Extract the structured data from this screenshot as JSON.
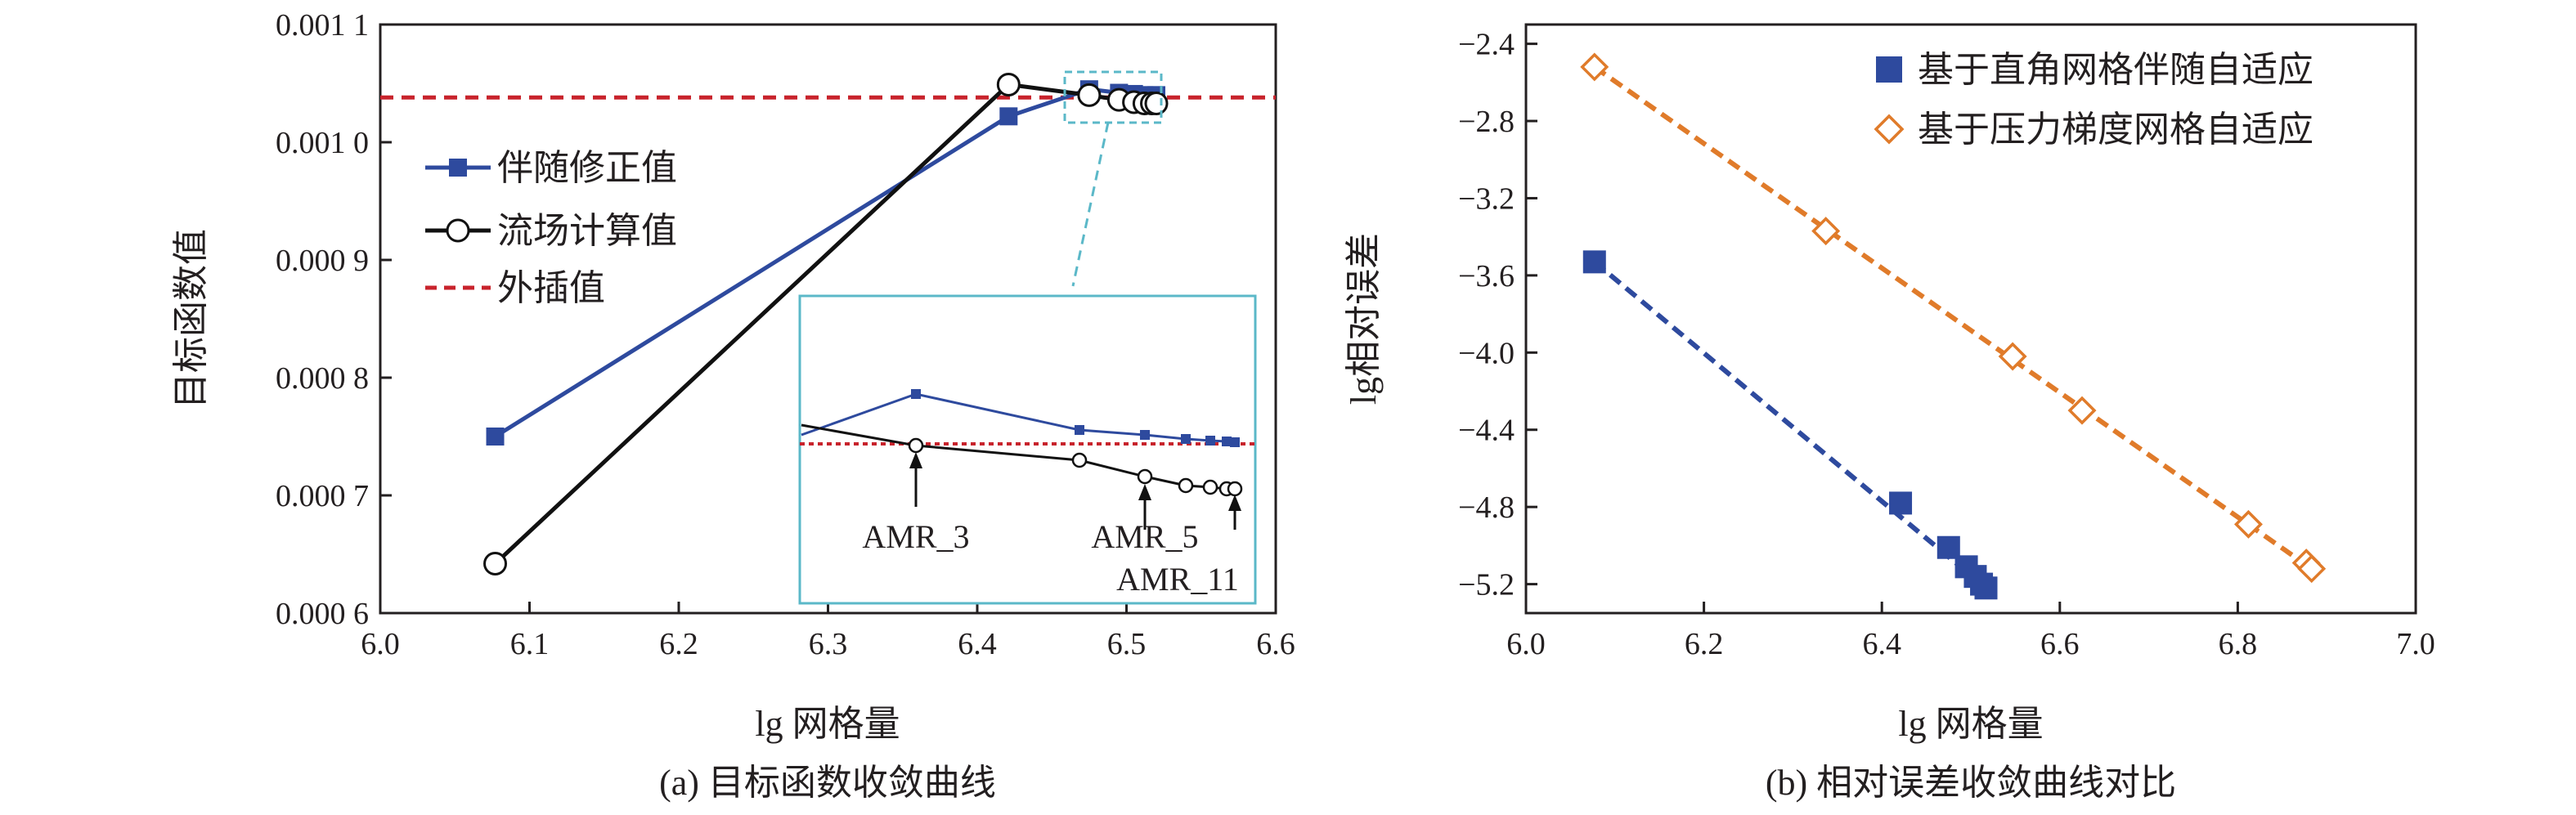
{
  "chart_data": [
    {
      "type": "line",
      "panel": "a",
      "caption": "(a) 目标函数收敛曲线",
      "xlabel": "lg 网格量",
      "ylabel": "目标函数值",
      "xlim": [
        6.0,
        6.6
      ],
      "ylim": [
        0.0006,
        0.0011
      ],
      "xticks": [
        6.0,
        6.1,
        6.2,
        6.3,
        6.4,
        6.5,
        6.6
      ],
      "xtick_labels": [
        "6.0",
        "6.1",
        "6.2",
        "6.3",
        "6.4",
        "6.5",
        "6.6"
      ],
      "yticks": [
        0.0006,
        0.0007,
        0.0008,
        0.0009,
        0.001,
        0.0011
      ],
      "ytick_labels": [
        "0.000 6",
        "0.000 7",
        "0.000 8",
        "0.000 9",
        "0.001 0",
        "0.001 1"
      ],
      "grid": false,
      "legend_position": "upper-left",
      "series": [
        {
          "name": "伴随修正值",
          "color": "#2e4a9e",
          "marker": "filled-square",
          "x": [
            6.077,
            6.421,
            6.475,
            6.495,
            6.505,
            6.512,
            6.517,
            6.52
          ],
          "y": [
            0.00075,
            0.001022,
            0.001045,
            0.001042,
            0.001041,
            0.00104,
            0.00104,
            0.00104
          ]
        },
        {
          "name": "流场计算值",
          "color": "#111111",
          "marker": "open-circle",
          "x": [
            6.077,
            6.421,
            6.475,
            6.495,
            6.505,
            6.512,
            6.517,
            6.52
          ],
          "y": [
            0.000642,
            0.001049,
            0.00104,
            0.001036,
            0.001034,
            0.001033,
            0.001033,
            0.001033
          ]
        },
        {
          "name": "外插值",
          "color": "#c8232c",
          "style": "dashed-horizontal",
          "y": 0.001038
        }
      ],
      "inset": {
        "labels": [
          "AMR_3",
          "AMR_5",
          "AMR_11"
        ],
        "border_color": "#5bb8c8"
      }
    },
    {
      "type": "scatter",
      "panel": "b",
      "caption": "(b) 相对误差收敛曲线对比",
      "xlabel": "lg 网格量",
      "ylabel": "lg相对误差",
      "xlim": [
        6.0,
        7.0
      ],
      "ylim": [
        -5.35,
        -2.3
      ],
      "xticks": [
        6.0,
        6.2,
        6.4,
        6.6,
        6.8,
        7.0
      ],
      "xtick_labels": [
        "6.0",
        "6.2",
        "6.4",
        "6.6",
        "6.8",
        "7.0"
      ],
      "yticks": [
        -5.2,
        -4.8,
        -4.4,
        -4.0,
        -3.6,
        -3.2,
        -2.8,
        -2.4
      ],
      "ytick_labels": [
        "−5.2",
        "−4.8",
        "−4.4",
        "−4.0",
        "−3.6",
        "−3.2",
        "−2.8",
        "−2.4"
      ],
      "grid": false,
      "legend_position": "top-right",
      "series": [
        {
          "name": "基于直角网格伴随自适应",
          "color": "#2e4a9e",
          "marker": "filled-square",
          "x": [
            6.077,
            6.421,
            6.475,
            6.495,
            6.505,
            6.512,
            6.517
          ],
          "y": [
            -3.53,
            -4.78,
            -5.01,
            -5.11,
            -5.16,
            -5.2,
            -5.22
          ]
        },
        {
          "name": "基于压力梯度网格自适应",
          "color": "#e07b2a",
          "marker": "open-diamond",
          "x": [
            6.077,
            6.337,
            6.547,
            6.625,
            6.812,
            6.877,
            6.883
          ],
          "y": [
            -2.52,
            -3.37,
            -4.02,
            -4.3,
            -4.89,
            -5.09,
            -5.12
          ]
        }
      ]
    }
  ]
}
